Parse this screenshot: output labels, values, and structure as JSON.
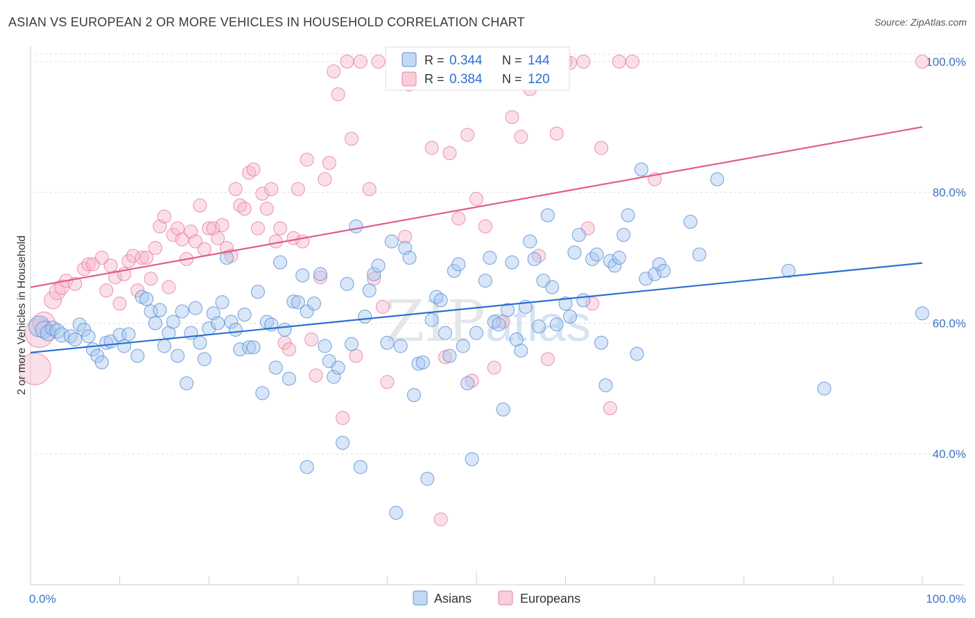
{
  "title": "ASIAN VS EUROPEAN 2 OR MORE VEHICLES IN HOUSEHOLD CORRELATION CHART",
  "source": "Source: ZipAtlas.com",
  "colors": {
    "asians_fill": "#a9c8f0",
    "asians_stroke": "#5b8fd6",
    "asians_line": "#2a6fd1",
    "europeans_fill": "#f6b8cb",
    "europeans_stroke": "#e87fa1",
    "europeans_line": "#e05b8c",
    "axis_text": "#3b72c4",
    "grid": "#dddddd"
  },
  "legend": {
    "asians": {
      "r_label": "R =",
      "r_value": "0.344",
      "n_label": "N =",
      "n_value": "144"
    },
    "europeans": {
      "r_label": "R =",
      "r_value": "0.384",
      "n_label": "N =",
      "n_value": "120"
    }
  },
  "watermark": {
    "zip": "ZIP",
    "atlas": "atlas"
  },
  "chart_data": {
    "type": "scatter",
    "title": "ASIAN VS EUROPEAN 2 OR MORE VEHICLES IN HOUSEHOLD CORRELATION CHART",
    "xlabel": "",
    "ylabel": "2 or more Vehicles in Household",
    "xlim": [
      0,
      100
    ],
    "ylim": [
      20,
      102
    ],
    "x_tick_labels": [
      "0.0%",
      "100.0%"
    ],
    "y_ticks": [
      40,
      60,
      80,
      100
    ],
    "y_tick_labels": [
      "40.0%",
      "60.0%",
      "80.0%",
      "100.0%"
    ],
    "grid": true,
    "legend_position": "top-center",
    "bottom_legend": [
      "Asians",
      "Europeans"
    ],
    "series": [
      {
        "name": "Asians",
        "trend": {
          "x": [
            0,
            100
          ],
          "y": [
            55.5,
            69.2
          ]
        },
        "points": [
          [
            1,
            59.5,
            1.6
          ],
          [
            1.5,
            59,
            1.3
          ],
          [
            2,
            58.5,
            1.2
          ],
          [
            2.5,
            59.2,
            1.1
          ],
          [
            3,
            58.8,
            1.1
          ],
          [
            3.5,
            58.2,
            1.1
          ],
          [
            4.5,
            58,
            1
          ],
          [
            5,
            57.5,
            1
          ],
          [
            5.5,
            59.8,
            1
          ],
          [
            6,
            59,
            1
          ],
          [
            6.5,
            58,
            1
          ],
          [
            7,
            56,
            1
          ],
          [
            7.5,
            55,
            1
          ],
          [
            8,
            54,
            1
          ],
          [
            8.5,
            57,
            1
          ],
          [
            9,
            57.2,
            1
          ],
          [
            10,
            58.2,
            1
          ],
          [
            10.5,
            56.5,
            1
          ],
          [
            11,
            58.3,
            1
          ],
          [
            12,
            55,
            1
          ],
          [
            12.5,
            64,
            1
          ],
          [
            13,
            63.7,
            1
          ],
          [
            13.5,
            61.8,
            1
          ],
          [
            14,
            60,
            1
          ],
          [
            14.5,
            62,
            1
          ],
          [
            15,
            56.5,
            1
          ],
          [
            15.5,
            58.5,
            1
          ],
          [
            16,
            60.2,
            1
          ],
          [
            16.5,
            55,
            1
          ],
          [
            17,
            61.8,
            1
          ],
          [
            17.5,
            50.8,
            1
          ],
          [
            18,
            58.5,
            1
          ],
          [
            18.5,
            62.3,
            1
          ],
          [
            19,
            57,
            1
          ],
          [
            19.5,
            54.5,
            1
          ],
          [
            20,
            59.2,
            1
          ],
          [
            20.5,
            61.5,
            1
          ],
          [
            21,
            60,
            1
          ],
          [
            21.5,
            63.2,
            1
          ],
          [
            22,
            70,
            1
          ],
          [
            22.5,
            60.2,
            1
          ],
          [
            23,
            59,
            1
          ],
          [
            23.5,
            56,
            1
          ],
          [
            24,
            61.3,
            1
          ],
          [
            24.5,
            56.3,
            1
          ],
          [
            25,
            56.3,
            1
          ],
          [
            25.5,
            64.8,
            1
          ],
          [
            26,
            49.3,
            1
          ],
          [
            26.5,
            60.2,
            1
          ],
          [
            27,
            59.8,
            1
          ],
          [
            27.5,
            53.2,
            1
          ],
          [
            28,
            69.3,
            1
          ],
          [
            28.5,
            59,
            1
          ],
          [
            29,
            51.5,
            1
          ],
          [
            29.5,
            63.3,
            1
          ],
          [
            30,
            63.2,
            1
          ],
          [
            30.5,
            67.3,
            1
          ],
          [
            31,
            61.8,
            1
          ],
          [
            31,
            38,
            1
          ],
          [
            31.8,
            63,
            1
          ],
          [
            32.5,
            67.5,
            1
          ],
          [
            33,
            56.5,
            1
          ],
          [
            33.5,
            54.2,
            1
          ],
          [
            34,
            51.8,
            1
          ],
          [
            34.5,
            53.2,
            1
          ],
          [
            35,
            41.7,
            1
          ],
          [
            35.5,
            66,
            1
          ],
          [
            36,
            56.8,
            1
          ],
          [
            36.5,
            74.8,
            1
          ],
          [
            37,
            38,
            1
          ],
          [
            37.5,
            61,
            1
          ],
          [
            38,
            65,
            1
          ],
          [
            38.5,
            67.5,
            1
          ],
          [
            39,
            68.8,
            1
          ],
          [
            40,
            57,
            1
          ],
          [
            40.5,
            72.5,
            1
          ],
          [
            41,
            31,
            1
          ],
          [
            41.5,
            56.5,
            1
          ],
          [
            42,
            71.5,
            1
          ],
          [
            42.5,
            70,
            1
          ],
          [
            43,
            49,
            1
          ],
          [
            43.5,
            53.8,
            1
          ],
          [
            44,
            54,
            1
          ],
          [
            44.5,
            36.2,
            1
          ],
          [
            45,
            60.5,
            1
          ],
          [
            45.5,
            64,
            1
          ],
          [
            46,
            63.5,
            1
          ],
          [
            46.5,
            58.5,
            1
          ],
          [
            47,
            55,
            1
          ],
          [
            47.5,
            68,
            1
          ],
          [
            48,
            69,
            1
          ],
          [
            48.5,
            56.5,
            1
          ],
          [
            49,
            50.8,
            1
          ],
          [
            49.5,
            39.2,
            1
          ],
          [
            50,
            58.5,
            1
          ],
          [
            51,
            66.5,
            1
          ],
          [
            51.5,
            70,
            1
          ],
          [
            52,
            60.2,
            1
          ],
          [
            52.5,
            59.8,
            1
          ],
          [
            53,
            46.8,
            1
          ],
          [
            53.5,
            62,
            1
          ],
          [
            54,
            69.3,
            1
          ],
          [
            54.5,
            57.5,
            1
          ],
          [
            55,
            55.8,
            1
          ],
          [
            55.5,
            62.5,
            1
          ],
          [
            56,
            72.5,
            1
          ],
          [
            56.5,
            69.8,
            1
          ],
          [
            57,
            59.5,
            1
          ],
          [
            57.5,
            66.5,
            1
          ],
          [
            58,
            76.5,
            1
          ],
          [
            58.5,
            65.5,
            1
          ],
          [
            59,
            59.8,
            1
          ],
          [
            60,
            63,
            1
          ],
          [
            60.5,
            61,
            1
          ],
          [
            61,
            70.8,
            1
          ],
          [
            61.5,
            73.5,
            1
          ],
          [
            62,
            63.5,
            1
          ],
          [
            63,
            69.8,
            1
          ],
          [
            63.5,
            70.5,
            1
          ],
          [
            64,
            57,
            1
          ],
          [
            64.5,
            50.5,
            1
          ],
          [
            65,
            69.5,
            1
          ],
          [
            65.5,
            68.8,
            1
          ],
          [
            66,
            70,
            1
          ],
          [
            66.5,
            73.5,
            1
          ],
          [
            67,
            76.5,
            1
          ],
          [
            68,
            55.3,
            1
          ],
          [
            68.5,
            83.5,
            1
          ],
          [
            69,
            66.8,
            1
          ],
          [
            70,
            67.5,
            1
          ],
          [
            70.5,
            69,
            1
          ],
          [
            71,
            68,
            1
          ],
          [
            74,
            75.5,
            1
          ],
          [
            75,
            70.5,
            1
          ],
          [
            77,
            82,
            1
          ],
          [
            85,
            68,
            1
          ],
          [
            89,
            50,
            1
          ],
          [
            100,
            61.5,
            1
          ]
        ]
      },
      {
        "name": "Europeans",
        "trend": {
          "x": [
            0,
            100
          ],
          "y": [
            65.5,
            90
          ]
        },
        "points": [
          [
            0.5,
            53,
            2.4
          ],
          [
            1,
            58.5,
            2.2
          ],
          [
            1.5,
            60,
            1.7
          ],
          [
            2.5,
            63.5,
            1.3
          ],
          [
            3,
            64.8,
            1.2
          ],
          [
            3.5,
            65.5,
            1.1
          ],
          [
            4,
            66.5,
            1
          ],
          [
            5,
            66,
            1
          ],
          [
            6,
            68.3,
            1
          ],
          [
            6.5,
            69,
            1
          ],
          [
            7,
            69,
            1
          ],
          [
            8,
            70,
            1
          ],
          [
            8.5,
            65,
            1
          ],
          [
            9,
            68.8,
            1
          ],
          [
            9.5,
            67,
            1
          ],
          [
            10,
            63,
            1
          ],
          [
            10.5,
            67.5,
            1
          ],
          [
            11,
            69.5,
            1
          ],
          [
            11.5,
            70.3,
            1
          ],
          [
            12,
            65,
            1
          ],
          [
            12.5,
            70,
            1
          ],
          [
            13,
            70,
            1
          ],
          [
            13.5,
            66.8,
            1
          ],
          [
            14,
            71.5,
            1
          ],
          [
            14.5,
            74.8,
            1
          ],
          [
            15,
            76.3,
            1
          ],
          [
            15.5,
            65.5,
            1
          ],
          [
            16,
            73.5,
            1
          ],
          [
            16.5,
            74.5,
            1
          ],
          [
            17,
            72.8,
            1
          ],
          [
            17.5,
            69.8,
            1
          ],
          [
            18,
            74,
            1
          ],
          [
            18.5,
            72.5,
            1
          ],
          [
            19,
            78,
            1
          ],
          [
            19.5,
            71.3,
            1
          ],
          [
            20,
            74.5,
            1
          ],
          [
            20.5,
            74.5,
            1
          ],
          [
            21,
            73,
            1
          ],
          [
            21.5,
            75,
            1
          ],
          [
            22,
            71.5,
            1
          ],
          [
            22.5,
            70.3,
            1
          ],
          [
            23,
            80.5,
            1
          ],
          [
            23.5,
            78,
            1
          ],
          [
            24,
            77.5,
            1
          ],
          [
            24.5,
            83,
            1
          ],
          [
            25,
            83.5,
            1
          ],
          [
            25.5,
            74.5,
            1
          ],
          [
            26,
            79.8,
            1
          ],
          [
            26.5,
            77.5,
            1
          ],
          [
            27,
            80.5,
            1
          ],
          [
            27.5,
            72.5,
            1
          ],
          [
            28,
            74.5,
            1
          ],
          [
            28.5,
            57,
            1
          ],
          [
            29,
            56,
            1
          ],
          [
            29.5,
            73,
            1
          ],
          [
            30,
            80.5,
            1
          ],
          [
            30.5,
            72.5,
            1
          ],
          [
            31,
            85,
            1
          ],
          [
            31.5,
            57.5,
            1
          ],
          [
            32,
            52,
            1
          ],
          [
            32.5,
            67,
            1
          ],
          [
            33,
            82,
            1
          ],
          [
            33.5,
            84.5,
            1
          ],
          [
            34,
            98.5,
            1
          ],
          [
            34.5,
            95,
            1
          ],
          [
            35,
            45.5,
            1
          ],
          [
            35.5,
            100,
            1
          ],
          [
            36,
            88.2,
            1
          ],
          [
            36.5,
            55,
            1
          ],
          [
            37,
            100,
            1
          ],
          [
            38,
            80.5,
            1
          ],
          [
            38.5,
            66.8,
            1
          ],
          [
            39,
            100,
            1
          ],
          [
            39.5,
            62.5,
            1
          ],
          [
            40,
            51,
            1
          ],
          [
            41,
            99.5,
            1
          ],
          [
            42,
            73.2,
            1
          ],
          [
            42.5,
            96.5,
            1
          ],
          [
            43,
            99.5,
            1
          ],
          [
            44,
            100,
            1
          ],
          [
            45,
            86.8,
            1
          ],
          [
            46,
            30,
            1
          ],
          [
            46.5,
            54.8,
            1
          ],
          [
            47,
            86,
            1
          ],
          [
            48,
            76,
            1
          ],
          [
            49,
            88.8,
            1
          ],
          [
            49.5,
            51.2,
            1
          ],
          [
            50,
            79,
            1
          ],
          [
            51,
            74.8,
            1
          ],
          [
            52,
            53.2,
            1
          ],
          [
            53,
            60.2,
            1
          ],
          [
            54,
            91.5,
            1
          ],
          [
            55,
            88.5,
            1
          ],
          [
            56,
            95.8,
            1
          ],
          [
            57,
            70.3,
            1
          ],
          [
            58,
            54.5,
            1
          ],
          [
            59,
            89,
            1
          ],
          [
            60,
            100,
            1
          ],
          [
            60.5,
            99.8,
            1
          ],
          [
            62,
            100,
            1
          ],
          [
            62.5,
            74.5,
            1
          ],
          [
            63,
            63,
            1
          ],
          [
            64,
            86.8,
            1
          ],
          [
            65,
            47,
            1
          ],
          [
            66,
            100,
            1
          ],
          [
            67.5,
            100,
            1
          ],
          [
            70,
            82,
            1
          ],
          [
            100,
            100,
            1
          ]
        ]
      }
    ]
  }
}
